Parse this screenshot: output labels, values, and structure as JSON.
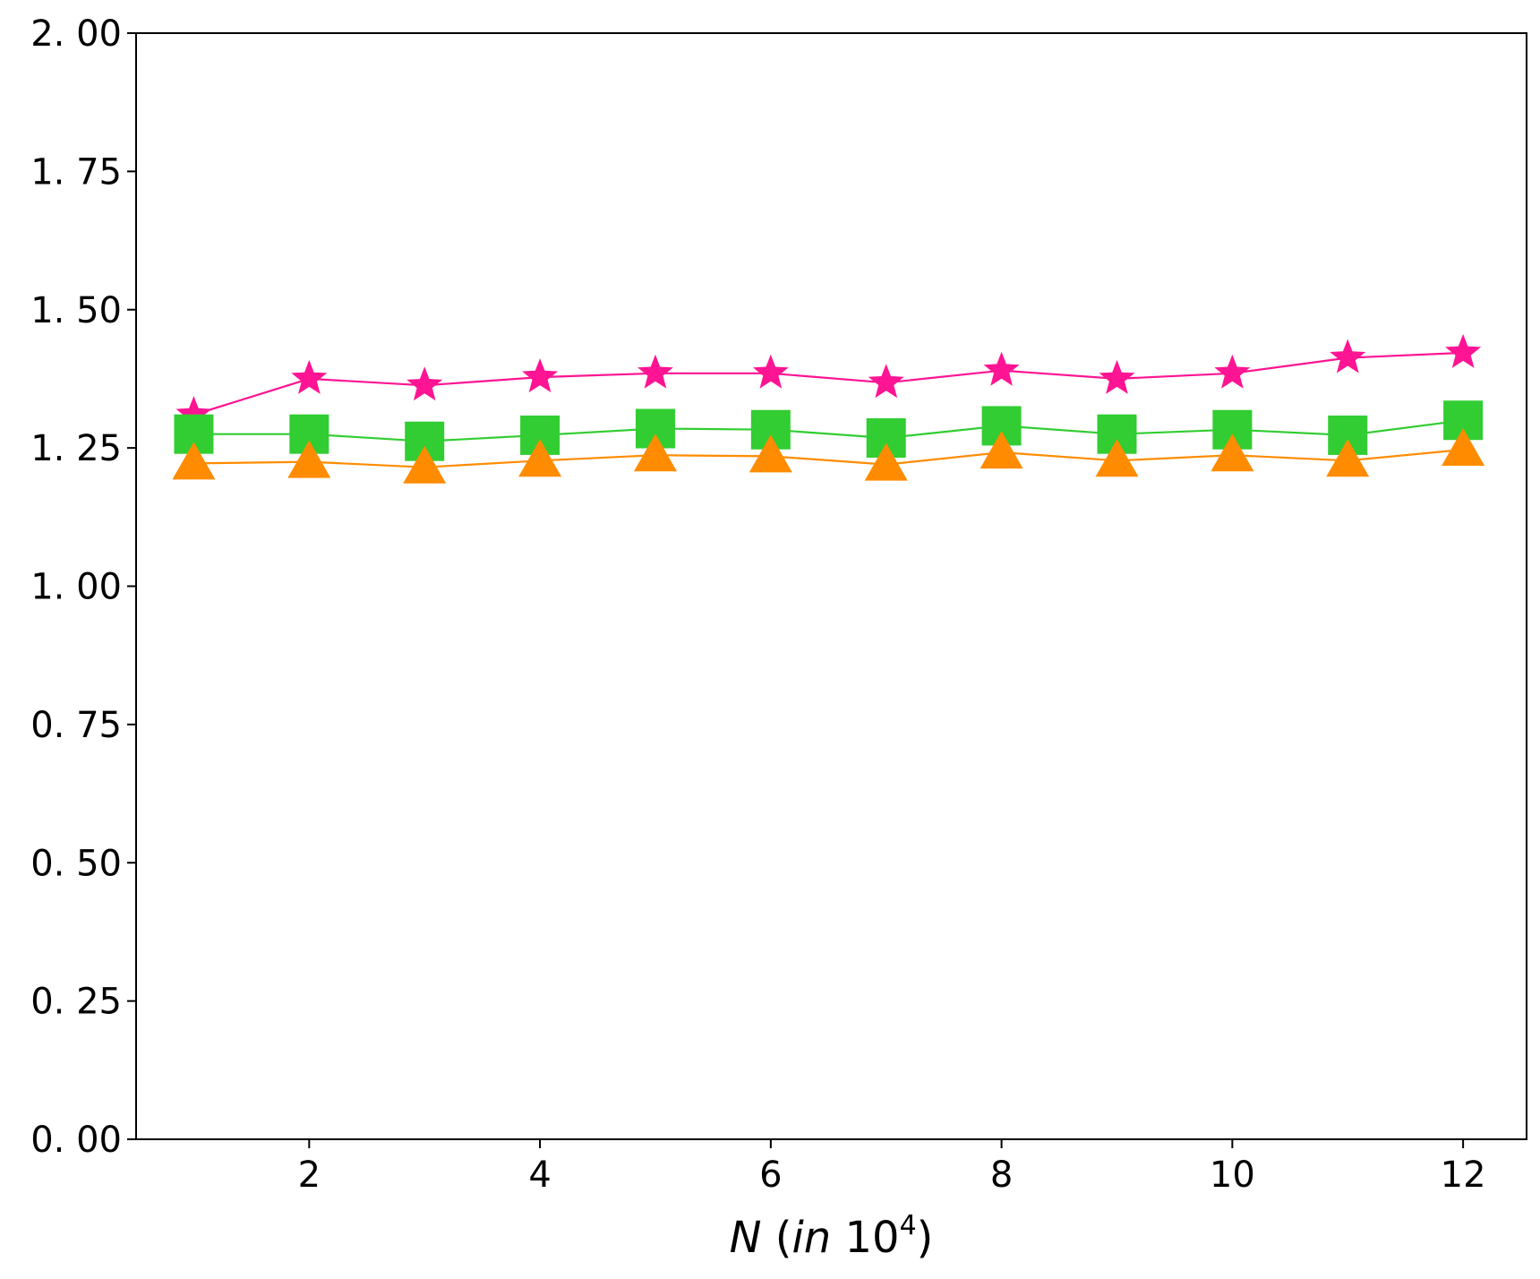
{
  "chart_data": {
    "type": "line",
    "title": "",
    "xlabel": {
      "var": "N",
      "open": " (",
      "word": "in",
      "base": "10",
      "exp": "4",
      "close": ")"
    },
    "ylabel": "",
    "xlim": [
      0.5,
      12.55
    ],
    "ylim": [
      0,
      2
    ],
    "xticks": [
      2,
      4,
      6,
      8,
      10,
      12
    ],
    "xtick_labels": [
      "2",
      "4",
      "6",
      "8",
      "10",
      "12"
    ],
    "yticks": [
      0,
      0.25,
      0.5,
      0.75,
      1.0,
      1.25,
      1.5,
      1.75,
      2.0
    ],
    "ytick_labels": [
      "0. 00",
      "0. 25",
      "0. 50",
      "0. 75",
      "1. 00",
      "1. 25",
      "1. 50",
      "1. 75",
      "2. 00"
    ],
    "x": [
      1,
      2,
      3,
      4,
      5,
      6,
      7,
      8,
      9,
      10,
      11,
      12
    ],
    "grid": false,
    "legend": "none",
    "series": [
      {
        "marker": "star",
        "color": "#ff1493",
        "values": [
          1.31,
          1.375,
          1.363,
          1.378,
          1.385,
          1.385,
          1.368,
          1.39,
          1.375,
          1.385,
          1.413,
          1.422
        ]
      },
      {
        "marker": "square",
        "color": "#32cd32",
        "values": [
          1.275,
          1.275,
          1.262,
          1.273,
          1.285,
          1.283,
          1.268,
          1.29,
          1.275,
          1.283,
          1.273,
          1.3
        ]
      },
      {
        "marker": "triangle",
        "color": "#ff8c00",
        "values": [
          1.222,
          1.225,
          1.215,
          1.227,
          1.237,
          1.235,
          1.22,
          1.242,
          1.227,
          1.237,
          1.227,
          1.247
        ]
      }
    ]
  }
}
